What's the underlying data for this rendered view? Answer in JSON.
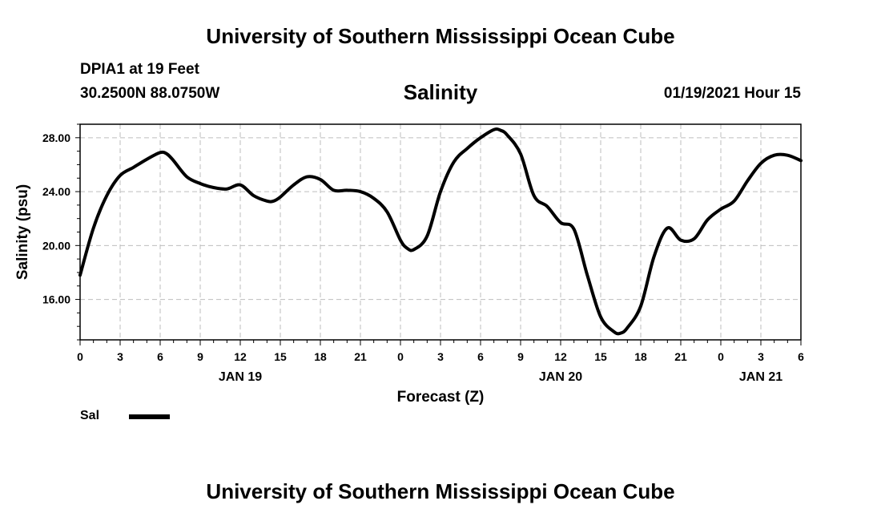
{
  "header": {
    "title": "University of Southern Mississippi Ocean Cube",
    "station": "DPIA1 at 19 Feet",
    "coords": "30.2500N 88.0750W",
    "chart_title": "Salinity",
    "datetime": "01/19/2021 Hour 15"
  },
  "footer": {
    "title": "University of Southern Mississippi Ocean Cube"
  },
  "legend": {
    "label": "Sal",
    "color": "#000000"
  },
  "chart_data": {
    "type": "line",
    "title": "Salinity",
    "xlabel": "Forecast (Z)",
    "ylabel": "Salinity (psu)",
    "xlim": [
      0,
      54
    ],
    "ylim": [
      13,
      29
    ],
    "yticks": [
      16,
      20,
      24,
      28
    ],
    "ytick_labels": [
      "16.00",
      "20.00",
      "24.00",
      "28.00"
    ],
    "xticks": [
      0,
      3,
      6,
      9,
      12,
      15,
      18,
      21,
      24,
      27,
      30,
      33,
      36,
      39,
      42,
      45,
      48,
      51,
      54
    ],
    "xtick_labels": [
      "0",
      "3",
      "6",
      "9",
      "12",
      "15",
      "18",
      "21",
      "0",
      "3",
      "6",
      "9",
      "12",
      "15",
      "18",
      "21",
      "0",
      "3",
      "6"
    ],
    "day_labels": [
      {
        "x": 12,
        "label": "JAN 19"
      },
      {
        "x": 36,
        "label": "JAN 20"
      },
      {
        "x": 51,
        "label": "JAN 21"
      }
    ],
    "grid": true,
    "series": [
      {
        "name": "Sal",
        "color": "#000000",
        "x": [
          0,
          1,
          2,
          3,
          4,
          5,
          6,
          6.5,
          7,
          8,
          9,
          10,
          11,
          12,
          13,
          14,
          14.5,
          15,
          16,
          17,
          18,
          19,
          20,
          21,
          22,
          23,
          24,
          24.5,
          25,
          26,
          27,
          28,
          29,
          30,
          31,
          31.5,
          32,
          33,
          34,
          35,
          36,
          37,
          38,
          39,
          40,
          40.5,
          41,
          42,
          43,
          44,
          45,
          46,
          47,
          48,
          49,
          50,
          51,
          52,
          53,
          54
        ],
        "values": [
          17.8,
          21.3,
          23.7,
          25.2,
          25.8,
          26.4,
          26.9,
          26.8,
          26.3,
          25.1,
          24.6,
          24.3,
          24.2,
          24.5,
          23.7,
          23.3,
          23.3,
          23.6,
          24.5,
          25.1,
          24.9,
          24.1,
          24.1,
          24.0,
          23.5,
          22.5,
          20.4,
          19.8,
          19.7,
          20.7,
          24.0,
          26.2,
          27.2,
          28.0,
          28.6,
          28.55,
          28.2,
          26.8,
          23.7,
          22.9,
          21.7,
          21.2,
          17.8,
          14.7,
          13.6,
          13.5,
          13.9,
          15.5,
          19.2,
          21.3,
          20.4,
          20.5,
          21.9,
          22.7,
          23.3,
          24.8,
          26.1,
          26.7,
          26.7,
          26.3
        ]
      }
    ]
  }
}
